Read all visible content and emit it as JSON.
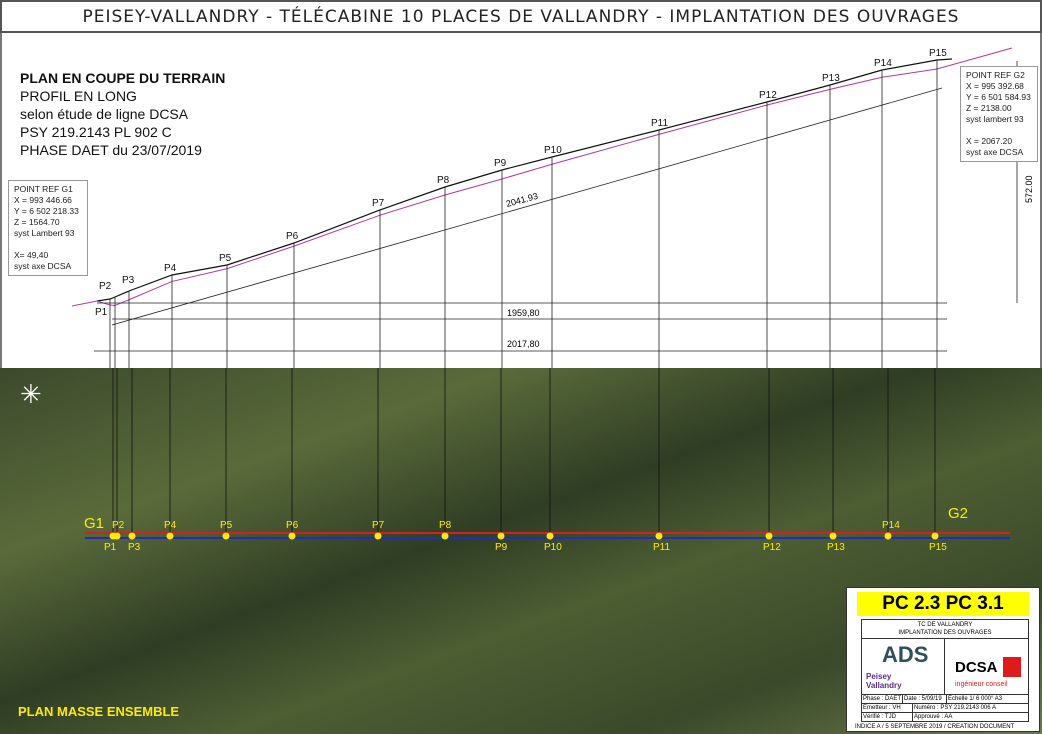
{
  "title": "PEISEY-VALLANDRY - TÉLÉCABINE 10 PLACES DE VALLANDRY - IMPLANTATION DES OUVRAGES",
  "info": [
    "PLAN EN COUPE DU TERRAIN",
    "PROFIL EN LONG",
    "selon étude de ligne DCSA",
    "PSY 219.2143 PL 902 C",
    "PHASE DAET du 23/07/2019"
  ],
  "ref_g1": [
    "POINT REF G1",
    "X = 993 446.66",
    "Y = 6 502 218.33",
    "Z = 1564.70",
    "syst Lambert 93",
    "",
    "X= 49,40",
    "syst axe DCSA"
  ],
  "ref_g2": [
    "POINT REF G2",
    "X = 995 392.68",
    "Y = 6 501 584.93",
    "Z = 2138.00",
    "syst lambert 93",
    "",
    "X = 2067.20",
    "syst axe DCSA"
  ],
  "dimensions": {
    "slope": "2041.93",
    "horizontal": "1959,80",
    "total": "2017,80",
    "height": "572.00"
  },
  "pylons": [
    "P1",
    "P2",
    "P3",
    "P4",
    "P5",
    "P6",
    "P7",
    "P8",
    "P9",
    "P10",
    "P11",
    "P12",
    "P13",
    "P14",
    "P15"
  ],
  "stations": [
    "G1",
    "G2"
  ],
  "map_label": "PLAN MASSE ENSEMBLE",
  "cartouche": {
    "pc": "PC 2.3 PC 3.1",
    "title1": "TC DE VALLANDRY",
    "title2": "IMPLANTATION DES OUVRAGES",
    "logo_ads": "ADS",
    "logo_peisey": "Peisey Vallandry",
    "logo_dcsa": "DCSA",
    "dcsa_sub": "ingénieur conseil",
    "phase": "Phase : DAET",
    "date": "Date : 5/09/19",
    "echelle": "Echelle 1/ 6 000° A3",
    "emetteur": "Emetteur : VH",
    "numero": "Numéro : PSY 219.2143 006 A",
    "verifie": "Vérifié : TJD",
    "approuve": "Approuvé : AA",
    "indice": "INDICE A / 5 SEPTEMBRE 2019 / CREATION DOCUMENT"
  },
  "colors": {
    "cable_red": "#d0202a",
    "axis_blue": "#2030b0",
    "pylon_yellow": "#ffeb00",
    "terrain": "#b0399a"
  }
}
